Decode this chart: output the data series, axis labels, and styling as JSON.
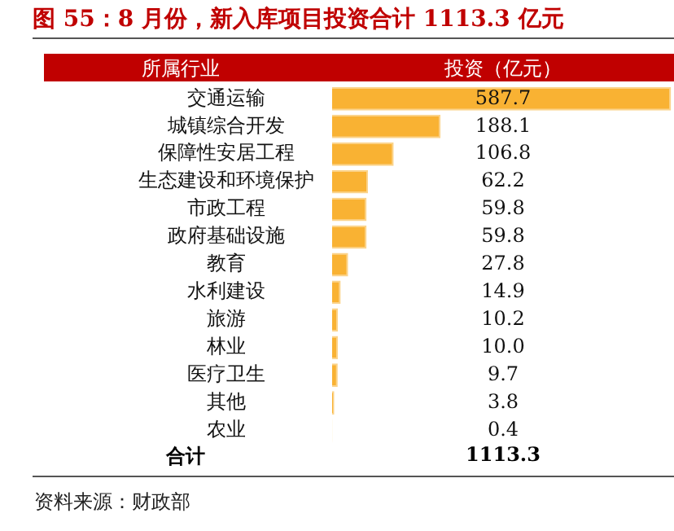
{
  "chart_data": {
    "type": "bar",
    "orientation": "horizontal",
    "title": "图 55：8 月份，新入库项目投资合计 1113.3 亿元",
    "ylabel": "所属行业",
    "xlabel": "投资（亿元）",
    "categories": [
      "交通运输",
      "城镇综合开发",
      "保障性安居工程",
      "生态建设和环境保护",
      "市政工程",
      "政府基础设施",
      "教育",
      "水利建设",
      "旅游",
      "林业",
      "医疗卫生",
      "其他",
      "农业"
    ],
    "values": [
      587.7,
      188.1,
      106.8,
      62.2,
      59.8,
      59.8,
      27.8,
      14.9,
      10.2,
      10.0,
      9.7,
      3.8,
      0.4
    ],
    "value_labels": [
      "587.7",
      "188.1",
      "106.8",
      "62.2",
      "59.8",
      "59.8",
      "27.8",
      "14.9",
      "10.2",
      "10.0",
      "9.7",
      "3.8",
      "0.4"
    ],
    "color": "#f9b233",
    "xlim": [
      0,
      590
    ],
    "tick_labels": "y",
    "annotations": [
      "合计",
      "1113.3",
      "资料来源：财政部"
    ]
  }
}
